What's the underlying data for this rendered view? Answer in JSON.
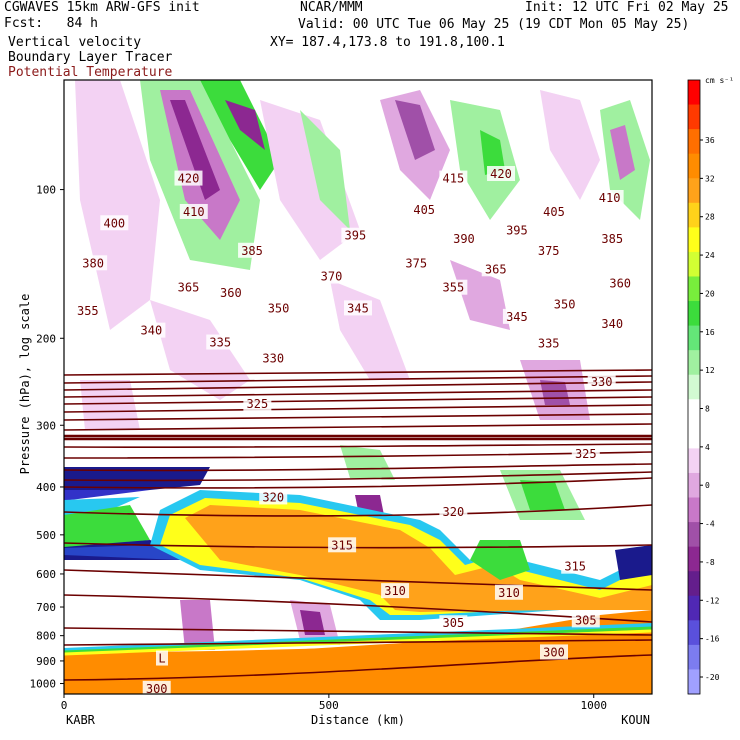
{
  "header": {
    "left1": "CGWAVES 15km ARW-GFS init",
    "left2": "Fcst:   84 h",
    "left3": "Vertical velocity",
    "left4": "Boundary Layer Tracer",
    "left5": "Potential Temperature",
    "center1": "NCAR/MMM",
    "init": "Init: 12 UTC Fri 02 May 25",
    "valid": "Valid: 00 UTC Tue 06 May 25 (19 CDT Mon 05 May 25)",
    "xy": "XY= 187.4,173.8 to 191.8,100.1"
  },
  "colors": {
    "theta_contour": "#6b0000",
    "title_red": "#8b1a1a"
  },
  "chart_data": {
    "type": "cross-section",
    "xlabel": "Distance (km)",
    "ylabel": "Pressure (hPa), log scale",
    "xlim": [
      0,
      1110
    ],
    "ylim": [
      1050,
      60
    ],
    "x_ticks": [
      0,
      500,
      1000
    ],
    "y_ticks": [
      100,
      200,
      300,
      400,
      500,
      600,
      700,
      800,
      900,
      1000
    ],
    "left_station": "KABR",
    "right_station": "KOUN",
    "colorbar": {
      "units": "cm s⁻¹",
      "tick_labels": [
        "36",
        "32",
        "28",
        "24",
        "20",
        "16",
        "12",
        "8",
        "4",
        "0",
        "-4",
        "-8",
        "-12",
        "-16",
        "-20"
      ],
      "colors": [
        "#ff0000",
        "#ff3a00",
        "#ff6f00",
        "#ff8c00",
        "#ffa21a",
        "#ffd21a",
        "#ffff1a",
        "#d2ff33",
        "#78ee3c",
        "#3cdc3c",
        "#64e678",
        "#a0f0a0",
        "#d2fad2",
        "#ffffff",
        "#ffffff",
        "#f3d2f3",
        "#e0a8e0",
        "#c878c8",
        "#a050a8",
        "#8c2891",
        "#641e8c",
        "#5028b4",
        "#5a50dc",
        "#7c7cf0",
        "#a0a0ff"
      ]
    },
    "theta_labels": [
      {
        "v": "420",
        "x": 235,
        "p": 95
      },
      {
        "v": "415",
        "x": 735,
        "p": 95
      },
      {
        "v": "420",
        "x": 825,
        "p": 93
      },
      {
        "v": "410",
        "x": 245,
        "p": 111
      },
      {
        "v": "410",
        "x": 1030,
        "p": 104
      },
      {
        "v": "405",
        "x": 680,
        "p": 110
      },
      {
        "v": "405",
        "x": 925,
        "p": 111
      },
      {
        "v": "400",
        "x": 95,
        "p": 117
      },
      {
        "v": "395",
        "x": 550,
        "p": 124
      },
      {
        "v": "390",
        "x": 755,
        "p": 126
      },
      {
        "v": "395",
        "x": 855,
        "p": 121
      },
      {
        "v": "385",
        "x": 355,
        "p": 133
      },
      {
        "v": "385",
        "x": 1035,
        "p": 126
      },
      {
        "v": "375",
        "x": 915,
        "p": 133
      },
      {
        "v": "380",
        "x": 55,
        "p": 141
      },
      {
        "v": "375",
        "x": 665,
        "p": 141
      },
      {
        "v": "365",
        "x": 815,
        "p": 145
      },
      {
        "v": "370",
        "x": 505,
        "p": 150
      },
      {
        "v": "365",
        "x": 235,
        "p": 158
      },
      {
        "v": "360",
        "x": 315,
        "p": 162
      },
      {
        "v": "355",
        "x": 735,
        "p": 158
      },
      {
        "v": "350",
        "x": 405,
        "p": 174
      },
      {
        "v": "350",
        "x": 945,
        "p": 171
      },
      {
        "v": "360",
        "x": 1050,
        "p": 155
      },
      {
        "v": "355",
        "x": 45,
        "p": 176
      },
      {
        "v": "345",
        "x": 555,
        "p": 174
      },
      {
        "v": "345",
        "x": 855,
        "p": 181
      },
      {
        "v": "340",
        "x": 1035,
        "p": 187
      },
      {
        "v": "340",
        "x": 165,
        "p": 193
      },
      {
        "v": "335",
        "x": 295,
        "p": 204
      },
      {
        "v": "335",
        "x": 915,
        "p": 205
      },
      {
        "v": "330",
        "x": 395,
        "p": 220
      },
      {
        "v": "330",
        "x": 1015,
        "p": 245
      },
      {
        "v": "325",
        "x": 365,
        "p": 272
      },
      {
        "v": "325",
        "x": 985,
        "p": 343
      },
      {
        "v": "320",
        "x": 395,
        "p": 420
      },
      {
        "v": "320",
        "x": 735,
        "p": 450
      },
      {
        "v": "315",
        "x": 525,
        "p": 525
      },
      {
        "v": "315",
        "x": 965,
        "p": 580
      },
      {
        "v": "310",
        "x": 625,
        "p": 650
      },
      {
        "v": "310",
        "x": 840,
        "p": 655
      },
      {
        "v": "305",
        "x": 735,
        "p": 755
      },
      {
        "v": "305",
        "x": 985,
        "p": 745
      },
      {
        "v": "300",
        "x": 925,
        "p": 865
      },
      {
        "v": "300",
        "x": 175,
        "p": 1025
      },
      {
        "v": "L",
        "x": 185,
        "p": 890
      }
    ]
  }
}
